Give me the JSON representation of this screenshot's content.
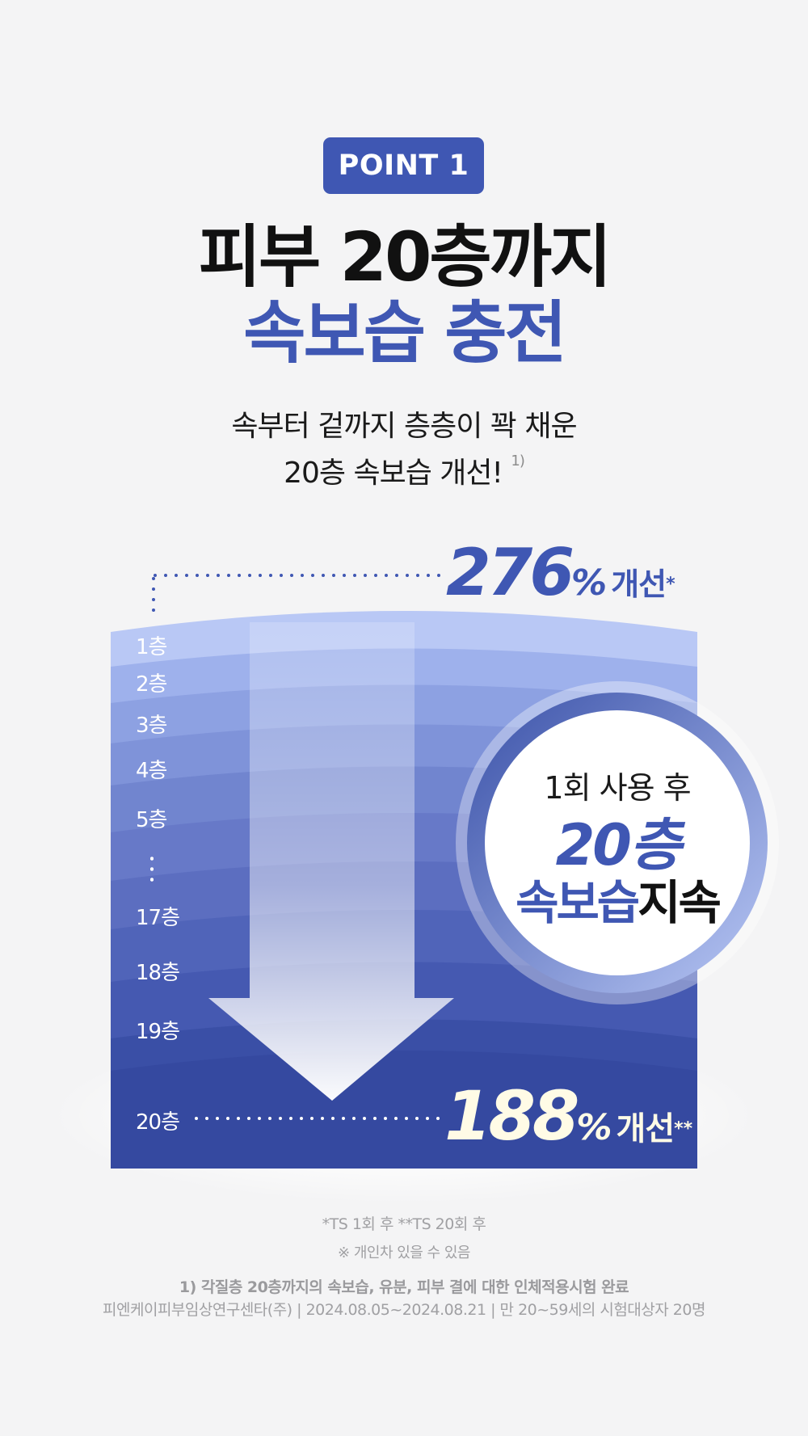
{
  "badge": "POINT 1",
  "title": {
    "line1": "피부 20층까지",
    "line2": "속보습 충전"
  },
  "subtitle": {
    "line1": "속부터 겉까지 층층이 꽉 채운",
    "line2": "20층 속보습 개선!",
    "sup": "1)"
  },
  "stat_top": {
    "value": "276",
    "percent": "%",
    "label": "개선",
    "mark": "*"
  },
  "stat_bottom": {
    "value": "188",
    "percent": "%",
    "label": "개선",
    "mark": "**"
  },
  "layers": [
    "1층",
    "2층",
    "3층",
    "4층",
    "5층",
    "17층",
    "18층",
    "19층",
    "20층"
  ],
  "circle": {
    "line1": "1회 사용 후",
    "line2": "20층",
    "line3_blue": "속보습",
    "line3_black": "지속"
  },
  "footnotes": {
    "ts": "*TS 1회 후   **TS 20회 후",
    "note": "※ 개인차 있을 수 있음",
    "test": "1) 각질층 20층까지의 속보습, 유분, 피부 결에 대한 인체적용시험 완료",
    "org": "피엔케이피부임상연구센타(주) | 2024.08.05~2024.08.21 | 만 20~59세의 시험대상자 20명"
  },
  "colors": {
    "brand": "#3f57b3",
    "background": "#f4f4f5",
    "highlight": "#fffbe6"
  }
}
